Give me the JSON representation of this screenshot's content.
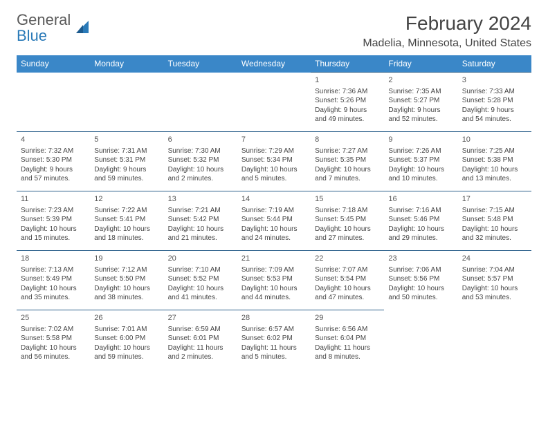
{
  "brand": {
    "name_part1": "General",
    "name_part2": "Blue",
    "text_color": "#5a5a5a",
    "blue_color": "#2a7ab8"
  },
  "title": "February 2024",
  "location": "Madelia, Minnesota, United States",
  "colors": {
    "header_bg": "#3a87c8",
    "header_text": "#ffffff",
    "cell_border": "#2a5f8a",
    "body_text": "#444444",
    "page_bg": "#ffffff"
  },
  "typography": {
    "title_fontsize": 28,
    "location_fontsize": 16,
    "dayheader_fontsize": 12,
    "cell_fontsize": 10,
    "logo_fontsize": 22
  },
  "day_headers": [
    "Sunday",
    "Monday",
    "Tuesday",
    "Wednesday",
    "Thursday",
    "Friday",
    "Saturday"
  ],
  "weeks": [
    [
      null,
      null,
      null,
      null,
      {
        "n": "1",
        "sunrise": "Sunrise: 7:36 AM",
        "sunset": "Sunset: 5:26 PM",
        "daylight": "Daylight: 9 hours and 49 minutes."
      },
      {
        "n": "2",
        "sunrise": "Sunrise: 7:35 AM",
        "sunset": "Sunset: 5:27 PM",
        "daylight": "Daylight: 9 hours and 52 minutes."
      },
      {
        "n": "3",
        "sunrise": "Sunrise: 7:33 AM",
        "sunset": "Sunset: 5:28 PM",
        "daylight": "Daylight: 9 hours and 54 minutes."
      }
    ],
    [
      {
        "n": "4",
        "sunrise": "Sunrise: 7:32 AM",
        "sunset": "Sunset: 5:30 PM",
        "daylight": "Daylight: 9 hours and 57 minutes."
      },
      {
        "n": "5",
        "sunrise": "Sunrise: 7:31 AM",
        "sunset": "Sunset: 5:31 PM",
        "daylight": "Daylight: 9 hours and 59 minutes."
      },
      {
        "n": "6",
        "sunrise": "Sunrise: 7:30 AM",
        "sunset": "Sunset: 5:32 PM",
        "daylight": "Daylight: 10 hours and 2 minutes."
      },
      {
        "n": "7",
        "sunrise": "Sunrise: 7:29 AM",
        "sunset": "Sunset: 5:34 PM",
        "daylight": "Daylight: 10 hours and 5 minutes."
      },
      {
        "n": "8",
        "sunrise": "Sunrise: 7:27 AM",
        "sunset": "Sunset: 5:35 PM",
        "daylight": "Daylight: 10 hours and 7 minutes."
      },
      {
        "n": "9",
        "sunrise": "Sunrise: 7:26 AM",
        "sunset": "Sunset: 5:37 PM",
        "daylight": "Daylight: 10 hours and 10 minutes."
      },
      {
        "n": "10",
        "sunrise": "Sunrise: 7:25 AM",
        "sunset": "Sunset: 5:38 PM",
        "daylight": "Daylight: 10 hours and 13 minutes."
      }
    ],
    [
      {
        "n": "11",
        "sunrise": "Sunrise: 7:23 AM",
        "sunset": "Sunset: 5:39 PM",
        "daylight": "Daylight: 10 hours and 15 minutes."
      },
      {
        "n": "12",
        "sunrise": "Sunrise: 7:22 AM",
        "sunset": "Sunset: 5:41 PM",
        "daylight": "Daylight: 10 hours and 18 minutes."
      },
      {
        "n": "13",
        "sunrise": "Sunrise: 7:21 AM",
        "sunset": "Sunset: 5:42 PM",
        "daylight": "Daylight: 10 hours and 21 minutes."
      },
      {
        "n": "14",
        "sunrise": "Sunrise: 7:19 AM",
        "sunset": "Sunset: 5:44 PM",
        "daylight": "Daylight: 10 hours and 24 minutes."
      },
      {
        "n": "15",
        "sunrise": "Sunrise: 7:18 AM",
        "sunset": "Sunset: 5:45 PM",
        "daylight": "Daylight: 10 hours and 27 minutes."
      },
      {
        "n": "16",
        "sunrise": "Sunrise: 7:16 AM",
        "sunset": "Sunset: 5:46 PM",
        "daylight": "Daylight: 10 hours and 29 minutes."
      },
      {
        "n": "17",
        "sunrise": "Sunrise: 7:15 AM",
        "sunset": "Sunset: 5:48 PM",
        "daylight": "Daylight: 10 hours and 32 minutes."
      }
    ],
    [
      {
        "n": "18",
        "sunrise": "Sunrise: 7:13 AM",
        "sunset": "Sunset: 5:49 PM",
        "daylight": "Daylight: 10 hours and 35 minutes."
      },
      {
        "n": "19",
        "sunrise": "Sunrise: 7:12 AM",
        "sunset": "Sunset: 5:50 PM",
        "daylight": "Daylight: 10 hours and 38 minutes."
      },
      {
        "n": "20",
        "sunrise": "Sunrise: 7:10 AM",
        "sunset": "Sunset: 5:52 PM",
        "daylight": "Daylight: 10 hours and 41 minutes."
      },
      {
        "n": "21",
        "sunrise": "Sunrise: 7:09 AM",
        "sunset": "Sunset: 5:53 PM",
        "daylight": "Daylight: 10 hours and 44 minutes."
      },
      {
        "n": "22",
        "sunrise": "Sunrise: 7:07 AM",
        "sunset": "Sunset: 5:54 PM",
        "daylight": "Daylight: 10 hours and 47 minutes."
      },
      {
        "n": "23",
        "sunrise": "Sunrise: 7:06 AM",
        "sunset": "Sunset: 5:56 PM",
        "daylight": "Daylight: 10 hours and 50 minutes."
      },
      {
        "n": "24",
        "sunrise": "Sunrise: 7:04 AM",
        "sunset": "Sunset: 5:57 PM",
        "daylight": "Daylight: 10 hours and 53 minutes."
      }
    ],
    [
      {
        "n": "25",
        "sunrise": "Sunrise: 7:02 AM",
        "sunset": "Sunset: 5:58 PM",
        "daylight": "Daylight: 10 hours and 56 minutes."
      },
      {
        "n": "26",
        "sunrise": "Sunrise: 7:01 AM",
        "sunset": "Sunset: 6:00 PM",
        "daylight": "Daylight: 10 hours and 59 minutes."
      },
      {
        "n": "27",
        "sunrise": "Sunrise: 6:59 AM",
        "sunset": "Sunset: 6:01 PM",
        "daylight": "Daylight: 11 hours and 2 minutes."
      },
      {
        "n": "28",
        "sunrise": "Sunrise: 6:57 AM",
        "sunset": "Sunset: 6:02 PM",
        "daylight": "Daylight: 11 hours and 5 minutes."
      },
      {
        "n": "29",
        "sunrise": "Sunrise: 6:56 AM",
        "sunset": "Sunset: 6:04 PM",
        "daylight": "Daylight: 11 hours and 8 minutes."
      },
      null,
      null
    ]
  ]
}
